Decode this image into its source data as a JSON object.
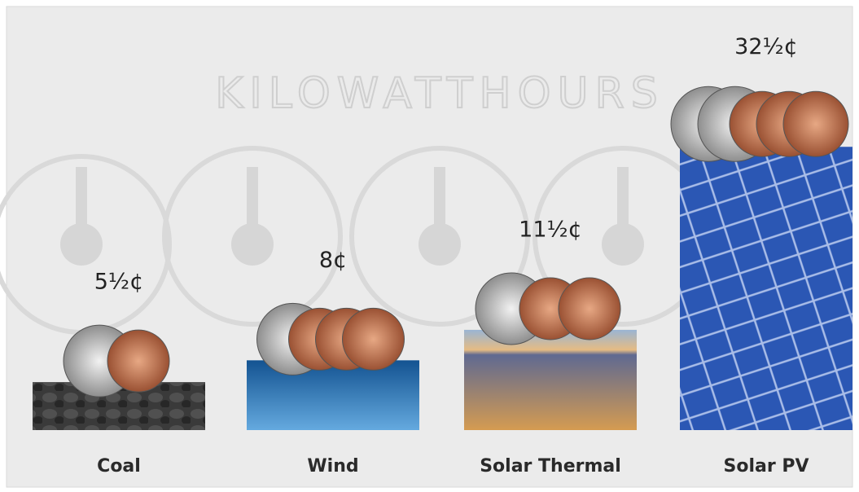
{
  "chart_data": {
    "type": "bar",
    "annotation": "KILOWATTHOURS",
    "categories": [
      "Coal",
      "Wind",
      "Solar Thermal",
      "Solar PV"
    ],
    "values": [
      5.5,
      8,
      11.5,
      32.5
    ],
    "value_labels": [
      "5½¢",
      "8¢",
      "11½¢",
      "32½¢"
    ],
    "colors": [
      "#3a3a3a",
      "#2a74b8",
      "#d8a35e",
      "#2b57b4"
    ]
  }
}
